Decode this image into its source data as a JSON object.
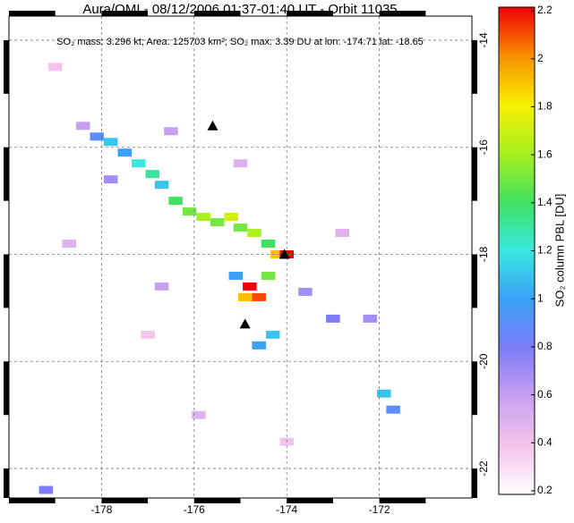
{
  "chart_data": {
    "type": "heatmap",
    "title": "Aura/OMI - 08/12/2006 01:37-01:40 UT - Orbit 11035",
    "subtitle": "SO₂ mass: 3.296 kt; Area: 125703 km²; SO₂ max: 3.39 DU at lon: -174.71 lat: -18.65",
    "colorbar_label": "SO₂ column PBL [DU]",
    "xlim": [
      -180,
      -170
    ],
    "ylim": [
      -22.55,
      -13.55
    ],
    "xticks": [
      -178,
      -176,
      -174,
      -172
    ],
    "yticks": [
      -14,
      -16,
      -18,
      -20,
      -22
    ],
    "clim": [
      0.2,
      2.2
    ],
    "cticks": [
      0.2,
      0.4,
      0.6,
      0.8,
      1.0,
      1.2,
      1.4,
      1.6,
      1.8,
      2.0,
      2.2
    ],
    "colormap": [
      "#ffffff",
      "#f4c4ec",
      "#c8a0f0",
      "#7c7cf8",
      "#3aa0f8",
      "#38e8e0",
      "#40e060",
      "#a8f020",
      "#f8f000",
      "#f89000",
      "#f00000"
    ],
    "grid": true,
    "cells": {
      "lon": [
        -178.4,
        -178.1,
        -177.8,
        -177.5,
        -177.2,
        -176.9,
        -176.7,
        -176.4,
        -176.1,
        -175.8,
        -175.5,
        -175.2,
        -175.0,
        -174.7,
        -174.4,
        -174.2,
        -174.0,
        -174.8,
        -174.6,
        -174.9,
        -174.4,
        -175.1,
        -174.3,
        -174.6,
        -171.9,
        -171.7,
        -173.0,
        -176.5,
        -177.8,
        -175.0,
        -173.6,
        -172.8,
        -172.2,
        -179.0,
        -178.7,
        -177.0,
        -175.9,
        -179.2,
        -174.0,
        -176.7
      ],
      "lat": [
        -15.6,
        -15.8,
        -15.9,
        -16.1,
        -16.3,
        -16.5,
        -16.7,
        -17.0,
        -17.2,
        -17.3,
        -17.4,
        -17.3,
        -17.5,
        -17.6,
        -17.8,
        -18.0,
        -18.0,
        -18.6,
        -18.8,
        -18.8,
        -18.4,
        -18.4,
        -19.5,
        -19.7,
        -20.6,
        -20.9,
        -19.2,
        -15.7,
        -16.6,
        -16.3,
        -18.7,
        -17.6,
        -19.2,
        -14.5,
        -17.8,
        -19.5,
        -21.0,
        -22.4,
        -21.5,
        -18.6
      ],
      "values": [
        0.6,
        0.9,
        1.1,
        1.0,
        1.2,
        1.3,
        1.1,
        1.4,
        1.5,
        1.6,
        1.5,
        1.7,
        1.5,
        1.6,
        1.4,
        1.9,
        2.2,
        2.2,
        2.1,
        1.9,
        1.5,
        1.0,
        1.1,
        1.0,
        1.1,
        0.9,
        0.8,
        0.6,
        0.7,
        0.5,
        0.7,
        0.5,
        0.7,
        0.4,
        0.5,
        0.4,
        0.5,
        0.8,
        0.4,
        0.6
      ]
    },
    "volcanoes": {
      "lon": [
        -175.6,
        -174.05,
        -174.9
      ],
      "lat": [
        -15.6,
        -18.0,
        -19.3
      ]
    }
  }
}
